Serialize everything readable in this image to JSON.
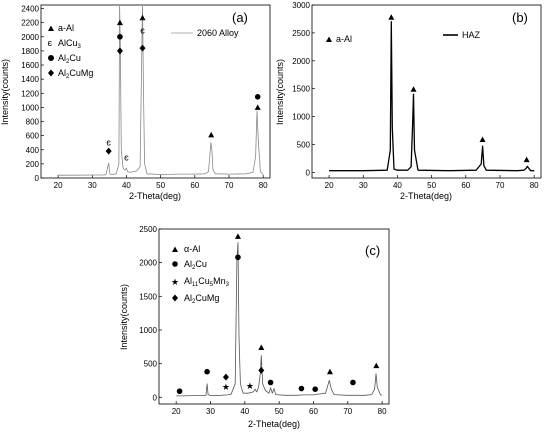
{
  "chart_data": [
    {
      "type": "line",
      "panel_label": "(a)",
      "xlabel": "2-Theta(deg)",
      "ylabel": "Intensity(counts)",
      "xlim": [
        15,
        82
      ],
      "ylim": [
        0,
        2450
      ],
      "xticks": [
        20,
        30,
        40,
        50,
        60,
        70,
        80
      ],
      "yticks": [
        0,
        200,
        400,
        600,
        800,
        1000,
        1200,
        1400,
        1600,
        1800,
        2000,
        2200,
        2400
      ],
      "series": [
        {
          "name": "2060 Alloy",
          "x": [
            20,
            25,
            30,
            33,
            34,
            34.8,
            35,
            35.2,
            36,
            37,
            37.8,
            38,
            38.2,
            38.5,
            39,
            39.5,
            40,
            40.3,
            41,
            42,
            43,
            44,
            44.4,
            44.7,
            45,
            45.3,
            46,
            50,
            55,
            60,
            63,
            64,
            64.7,
            65,
            65.3,
            66,
            70,
            75,
            77,
            77.8,
            78.2,
            78.6,
            79.2,
            80
          ],
          "y": [
            40,
            40,
            42,
            42,
            45,
            210,
            120,
            55,
            50,
            60,
            200,
            2450,
            1900,
            400,
            150,
            110,
            140,
            90,
            80,
            90,
            100,
            160,
            1500,
            2450,
            1200,
            200,
            60,
            50,
            55,
            55,
            60,
            90,
            500,
            400,
            120,
            60,
            55,
            60,
            80,
            300,
            950,
            500,
            90,
            50
          ]
        }
      ],
      "legend": [
        {
          "marker": "triangle",
          "text": "a-Al"
        },
        {
          "marker": "epsilon",
          "text": "AlCu3"
        },
        {
          "marker": "circle",
          "text": "Al2Cu"
        },
        {
          "marker": "diamond",
          "text": "Al2CuMg"
        }
      ],
      "line_legend": "2060 Alloy",
      "peak_markers": [
        {
          "x": 34.8,
          "y": 500,
          "marker": "epsilon"
        },
        {
          "x": 34.8,
          "y": 380,
          "marker": "diamond"
        },
        {
          "x": 38.1,
          "y": 2200,
          "marker": "triangle"
        },
        {
          "x": 38.1,
          "y": 2000,
          "marker": "circle"
        },
        {
          "x": 38.1,
          "y": 1800,
          "marker": "diamond"
        },
        {
          "x": 40,
          "y": 290,
          "marker": "epsilon"
        },
        {
          "x": 44.7,
          "y": 2270,
          "marker": "triangle"
        },
        {
          "x": 44.7,
          "y": 2090,
          "marker": "epsilon"
        },
        {
          "x": 44.7,
          "y": 1840,
          "marker": "diamond"
        },
        {
          "x": 64.8,
          "y": 610,
          "marker": "triangle"
        },
        {
          "x": 78.4,
          "y": 1150,
          "marker": "circle"
        },
        {
          "x": 78.4,
          "y": 1000,
          "marker": "triangle"
        }
      ]
    },
    {
      "type": "line",
      "panel_label": "(b)",
      "xlabel": "2-Theta(deg)",
      "ylabel": "Intensity(counts)",
      "xlim": [
        15,
        82
      ],
      "ylim": [
        -100,
        3000
      ],
      "xticks": [
        20,
        30,
        40,
        50,
        60,
        70,
        80
      ],
      "yticks": [
        0,
        500,
        1000,
        1500,
        2000,
        2500,
        3000
      ],
      "series": [
        {
          "name": "HAZ",
          "x": [
            20,
            30,
            37,
            37.9,
            38.2,
            38.5,
            39,
            40,
            43,
            44,
            44.4,
            44.7,
            45,
            46,
            55,
            63,
            64.5,
            64.9,
            65.3,
            66,
            75,
            77,
            77.6,
            78,
            79,
            80
          ],
          "y": [
            30,
            30,
            40,
            400,
            2700,
            800,
            60,
            40,
            40,
            100,
            800,
            1400,
            400,
            40,
            30,
            40,
            150,
            470,
            120,
            40,
            30,
            40,
            70,
            110,
            30,
            30
          ]
        }
      ],
      "legend": [
        {
          "marker": "triangle",
          "text": "a-Al"
        }
      ],
      "line_legend": "HAZ",
      "peak_markers": [
        {
          "x": 38.2,
          "y": 2780,
          "marker": "triangle"
        },
        {
          "x": 44.7,
          "y": 1490,
          "marker": "triangle"
        },
        {
          "x": 64.9,
          "y": 590,
          "marker": "triangle"
        },
        {
          "x": 77.8,
          "y": 230,
          "marker": "triangle"
        }
      ]
    },
    {
      "type": "line",
      "panel_label": "(c)",
      "xlabel": "2-Theta(deg)",
      "ylabel": "Intensity(counts)",
      "xlim": [
        15,
        82
      ],
      "ylim": [
        -100,
        2500
      ],
      "xticks": [
        20,
        30,
        40,
        50,
        60,
        70,
        80
      ],
      "yticks": [
        0,
        500,
        1000,
        1500,
        2000,
        2500
      ],
      "series": [
        {
          "name": "",
          "x": [
            20,
            22,
            25,
            28,
            28.7,
            29,
            29.3,
            30,
            33,
            35,
            36,
            37.2,
            37.7,
            38,
            38.3,
            38.7,
            39.5,
            41,
            42.5,
            43,
            43.5,
            44,
            44.5,
            44.8,
            45.2,
            46,
            47,
            47.5,
            48,
            48.5,
            49,
            52,
            55,
            57,
            60,
            62,
            63.5,
            64.6,
            65.2,
            66,
            70,
            75,
            77,
            77.8,
            78.2,
            78.6,
            79.5,
            80
          ],
          "y": [
            20,
            20,
            25,
            25,
            30,
            200,
            40,
            25,
            30,
            35,
            45,
            200,
            2050,
            2300,
            900,
            200,
            60,
            60,
            80,
            120,
            80,
            150,
            350,
            620,
            200,
            100,
            60,
            140,
            60,
            130,
            40,
            30,
            30,
            35,
            35,
            50,
            60,
            250,
            120,
            40,
            30,
            30,
            40,
            120,
            350,
            150,
            40,
            30
          ]
        }
      ],
      "legend": [
        {
          "marker": "triangle",
          "text": "α-Al"
        },
        {
          "marker": "circle",
          "text": "Al2Cu"
        },
        {
          "marker": "star",
          "text": "Al11Cu5Mn3"
        },
        {
          "marker": "diamond",
          "text": "Al2CuMg"
        }
      ],
      "peak_markers": [
        {
          "x": 21,
          "y": 90,
          "marker": "circle"
        },
        {
          "x": 29,
          "y": 380,
          "marker": "circle"
        },
        {
          "x": 34.5,
          "y": 300,
          "marker": "diamond"
        },
        {
          "x": 34.5,
          "y": 150,
          "marker": "star"
        },
        {
          "x": 38,
          "y": 2390,
          "marker": "triangle"
        },
        {
          "x": 38,
          "y": 2080,
          "marker": "circle"
        },
        {
          "x": 41.5,
          "y": 170,
          "marker": "star"
        },
        {
          "x": 44.8,
          "y": 740,
          "marker": "triangle"
        },
        {
          "x": 44.8,
          "y": 400,
          "marker": "diamond"
        },
        {
          "x": 47.5,
          "y": 220,
          "marker": "circle"
        },
        {
          "x": 56.5,
          "y": 130,
          "marker": "circle"
        },
        {
          "x": 60.5,
          "y": 120,
          "marker": "circle"
        },
        {
          "x": 64.8,
          "y": 380,
          "marker": "triangle"
        },
        {
          "x": 71.5,
          "y": 220,
          "marker": "circle"
        },
        {
          "x": 78.3,
          "y": 470,
          "marker": "triangle"
        }
      ]
    }
  ]
}
